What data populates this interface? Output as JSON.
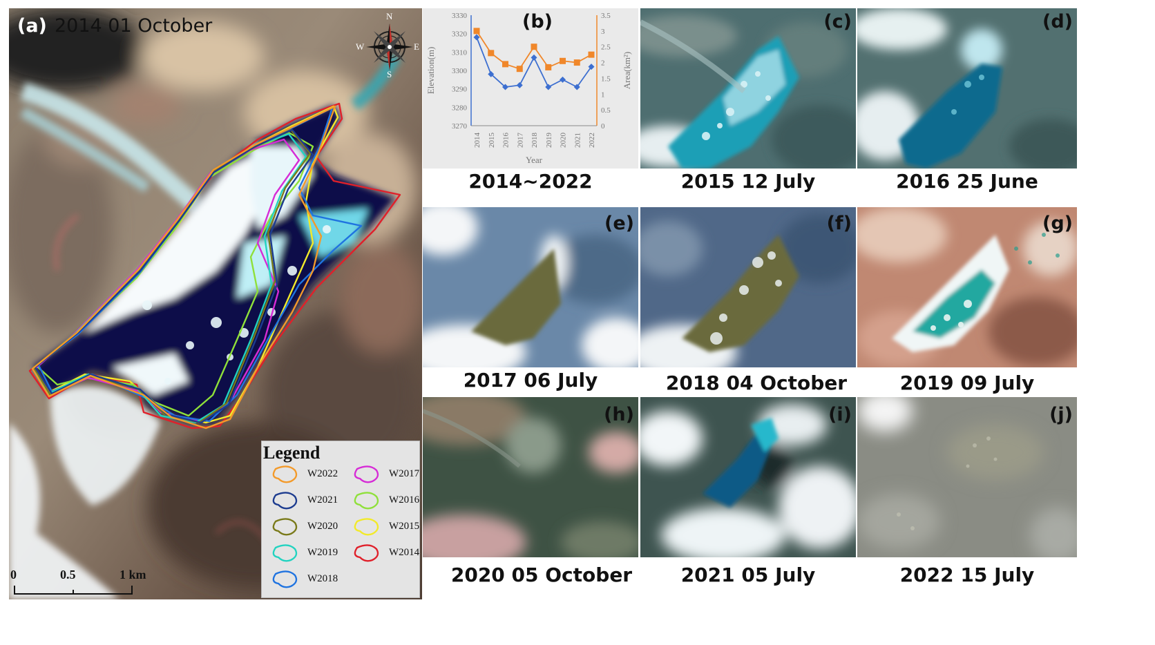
{
  "panels": {
    "a": {
      "label": "(a)",
      "date": "2014 01 October"
    },
    "b": {
      "label": "(b)",
      "caption": "2014~2022"
    },
    "c": {
      "label": "(c)",
      "caption": "2015 12 July"
    },
    "d": {
      "label": "(d)",
      "caption": "2016 25 June"
    },
    "e": {
      "label": "(e)",
      "caption": "2017 06 July"
    },
    "f": {
      "label": "(f)",
      "caption": "2018 04 October"
    },
    "g": {
      "label": "(g)",
      "caption": "2019 09 July"
    },
    "h": {
      "label": "(h)",
      "caption": "2020 05 October"
    },
    "i": {
      "label": "(i)",
      "caption": "2021 05 July"
    },
    "j": {
      "label": "(j)",
      "caption": "2022 15 July"
    }
  },
  "compass": {
    "n": "N",
    "s": "S",
    "e": "E",
    "w": "W"
  },
  "legend": {
    "title": "Legend",
    "items": [
      {
        "label": "W2022",
        "color": "#f39a2a"
      },
      {
        "label": "W2021",
        "color": "#1d3c8f"
      },
      {
        "label": "W2020",
        "color": "#7a7a1a"
      },
      {
        "label": "W2019",
        "color": "#22d3c0"
      },
      {
        "label": "W2018",
        "color": "#1f73e0"
      },
      {
        "label": "W2017",
        "color": "#d62bd6"
      },
      {
        "label": "W2016",
        "color": "#8fe03a"
      },
      {
        "label": "W2015",
        "color": "#f2ea2a"
      },
      {
        "label": "W2014",
        "color": "#e0202a"
      }
    ]
  },
  "scale_bar": {
    "ticks": [
      "0",
      "0.5",
      "1 km"
    ]
  },
  "chart_data": {
    "type": "line",
    "x": [
      "2014",
      "2015",
      "2016",
      "2017",
      "2018",
      "2019",
      "2020",
      "2021",
      "2022"
    ],
    "xlabel": "Year",
    "y_left": {
      "label": "Elevation(m)",
      "ticks": [
        "3270",
        "3280",
        "3290",
        "3300",
        "3310",
        "3320",
        "3330"
      ],
      "range": [
        3270,
        3330
      ]
    },
    "y_right": {
      "label": "Area(km²)",
      "ticks": [
        "0",
        "0.5",
        "1",
        "1.5",
        "2",
        "2.5",
        "3",
        "3.5"
      ],
      "range": [
        0,
        3.5
      ]
    },
    "series": [
      {
        "axis": "left",
        "color": "#3d6fd0",
        "marker": "diamond",
        "values": [
          3318,
          3298,
          3291,
          3292,
          3307,
          3291,
          3295,
          3291,
          3302
        ]
      },
      {
        "axis": "right",
        "color": "#f0872a",
        "marker": "square",
        "values": [
          3.0,
          2.3,
          1.95,
          1.8,
          2.5,
          1.85,
          2.05,
          2.0,
          2.25
        ]
      }
    ]
  }
}
